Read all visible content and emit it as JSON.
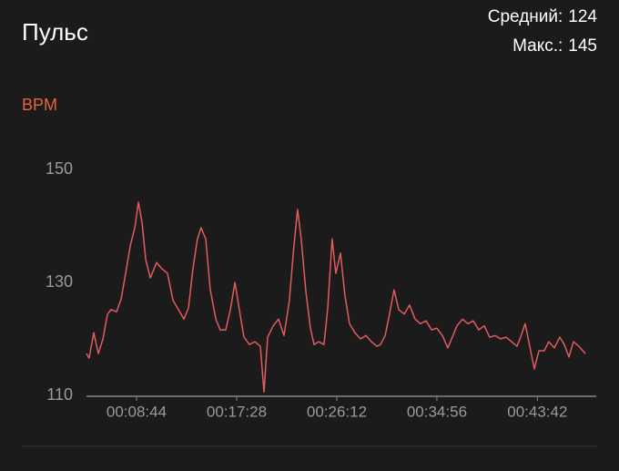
{
  "header": {
    "title": "Пульс",
    "stats": [
      {
        "label": "Средний:",
        "value": 124
      },
      {
        "label": "Макс.:",
        "value": 145
      }
    ]
  },
  "chart_data": {
    "type": "line",
    "y_label": "BPM",
    "x": [
      262,
      276,
      300,
      324,
      348,
      372,
      391,
      419,
      443,
      467,
      491,
      515,
      534,
      553,
      572,
      596,
      629,
      657,
      686,
      715,
      743,
      772,
      796,
      819,
      843,
      862,
      886,
      910,
      939,
      962,
      991,
      1015,
      1039,
      1062,
      1086,
      1115,
      1143,
      1172,
      1191,
      1210,
      1239,
      1267,
      1296,
      1324,
      1348,
      1367,
      1386,
      1410,
      1434,
      1453,
      1477,
      1505,
      1524,
      1548,
      1567,
      1591,
      1615,
      1639,
      1667,
      1696,
      1725,
      1753,
      1782,
      1801,
      1825,
      1848,
      1872,
      1896,
      1925,
      1953,
      1982,
      2010,
      2039,
      2068,
      2096,
      2125,
      2153,
      2177,
      2201,
      2230,
      2258,
      2287,
      2315,
      2344,
      2372,
      2401,
      2430,
      2458,
      2487,
      2515,
      2534,
      2558,
      2577,
      2606,
      2630,
      2658,
      2682,
      2711,
      2739,
      2763,
      2787,
      2811,
      2839,
      2873
    ],
    "series": [
      {
        "name": "BPM",
        "color": "#e25b5e",
        "values": [
          117.4,
          116.6,
          121.1,
          117.4,
          120,
          124.4,
          125.2,
          124.8,
          127,
          131.6,
          136.5,
          139.7,
          144.2,
          140.5,
          134,
          130.8,
          133.5,
          132.4,
          131.6,
          126.8,
          125.2,
          123.5,
          125.5,
          132.4,
          137.7,
          139.7,
          137.7,
          128.7,
          123.5,
          121.6,
          121.6,
          125.2,
          130,
          125.2,
          120.3,
          119,
          119.5,
          118.7,
          110.6,
          120.3,
          122.3,
          123.5,
          120.6,
          126.8,
          136.5,
          142.9,
          137.7,
          128.4,
          121.9,
          119,
          119.5,
          119,
          125.2,
          137.7,
          131.6,
          135.2,
          127.6,
          122.7,
          121.1,
          120,
          120.6,
          119.5,
          118.7,
          119,
          120.6,
          124.4,
          128.7,
          125.2,
          124.4,
          126,
          123.5,
          122.7,
          123.2,
          121.6,
          121.9,
          120.6,
          118.4,
          120.3,
          122.3,
          123.5,
          122.7,
          123.2,
          121.6,
          122.3,
          120.3,
          120.6,
          120,
          120.3,
          119.5,
          118.7,
          120.3,
          122.7,
          119.5,
          114.7,
          117.9,
          117.9,
          119.5,
          118.4,
          120.3,
          119,
          116.8,
          119.5,
          118.7,
          117.4
        ]
      }
    ],
    "xlim": [
      262,
      2930
    ],
    "xticks": [
      {
        "value": 524,
        "label": "00:08:44"
      },
      {
        "value": 1048,
        "label": "00:17:28"
      },
      {
        "value": 1572,
        "label": "00:26:12"
      },
      {
        "value": 2096,
        "label": "00:34:56"
      },
      {
        "value": 2622,
        "label": "00:43:42"
      }
    ],
    "ylim": [
      110,
      150
    ],
    "yticks": [
      110,
      130,
      150
    ],
    "grid": false
  }
}
